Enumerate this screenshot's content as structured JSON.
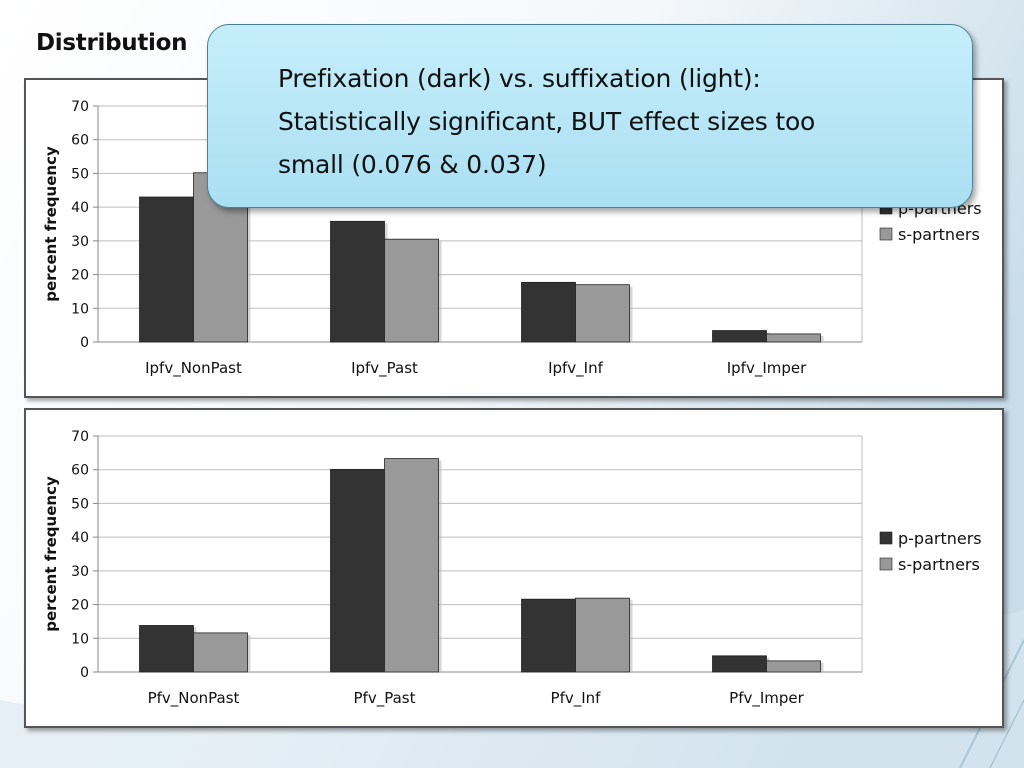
{
  "slide": {
    "title": "Distribution",
    "callout_lines": [
      "Prefixation (dark) vs. suffixation (light):",
      "Statistically significant, BUT effect sizes too",
      "small (0.076 & 0.037)"
    ]
  },
  "chart_data": [
    {
      "type": "bar",
      "ylabel": "percent frequency",
      "xlabel": "",
      "ylim": [
        0,
        70
      ],
      "yticks": [
        0,
        10,
        20,
        30,
        40,
        50,
        60,
        70
      ],
      "grid": true,
      "legend_position": "right",
      "categories": [
        "Ipfv_NonPast",
        "Ipfv_Past",
        "Ipfv_Inf",
        "Ipfv_Imper"
      ],
      "series": [
        {
          "name": "p-partners",
          "color": "#333333",
          "values": [
            43,
            35.8,
            17.7,
            3.4
          ]
        },
        {
          "name": "s-partners",
          "color": "#999999",
          "values": [
            50.2,
            30.5,
            17,
            2.4
          ]
        }
      ]
    },
    {
      "type": "bar",
      "ylabel": "percent frequency",
      "xlabel": "",
      "ylim": [
        0,
        70
      ],
      "yticks": [
        0,
        10,
        20,
        30,
        40,
        50,
        60,
        70
      ],
      "grid": true,
      "legend_position": "right",
      "categories": [
        "Pfv_NonPast",
        "Pfv_Past",
        "Pfv_Inf",
        "Pfv_Imper"
      ],
      "series": [
        {
          "name": "p-partners",
          "color": "#333333",
          "values": [
            13.8,
            60.1,
            21.6,
            4.8
          ]
        },
        {
          "name": "s-partners",
          "color": "#999999",
          "values": [
            11.6,
            63.3,
            21.9,
            3.3
          ]
        }
      ]
    }
  ]
}
